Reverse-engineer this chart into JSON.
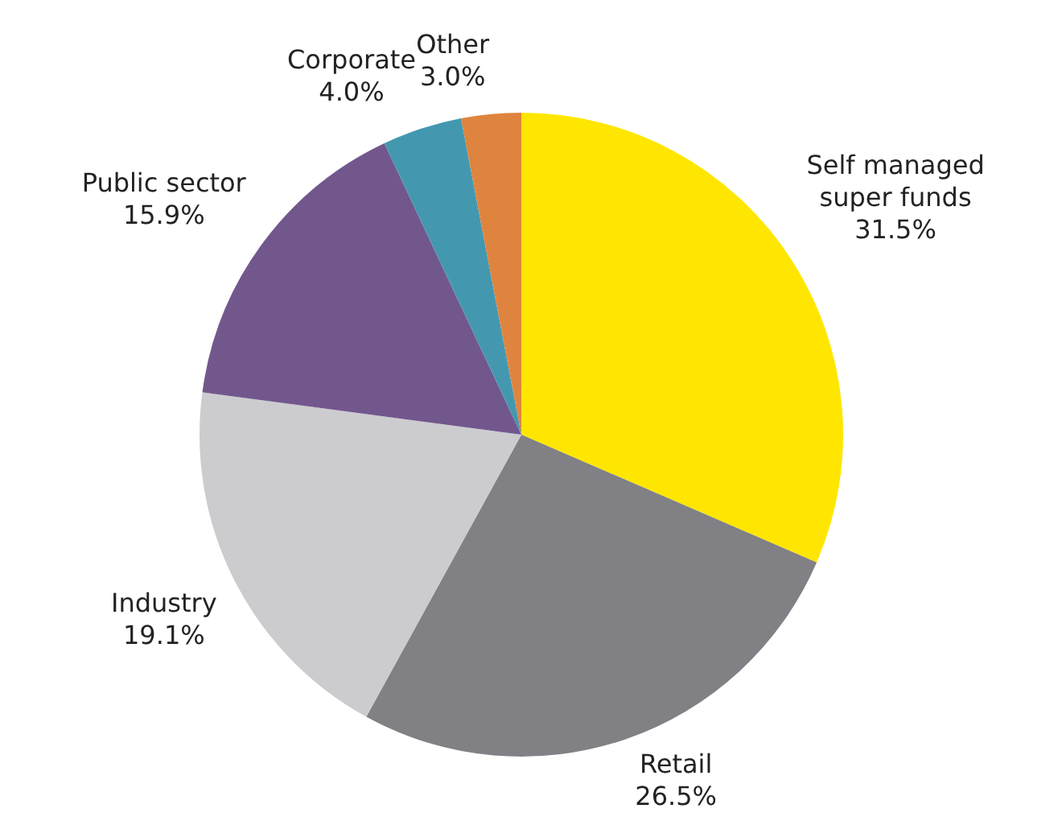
{
  "chart_data": {
    "type": "pie",
    "categories": [
      "Self managed super funds",
      "Retail",
      "Industry",
      "Public sector",
      "Corporate",
      "Other"
    ],
    "values": [
      31.5,
      26.5,
      19.1,
      15.9,
      4.0,
      3.0
    ],
    "value_labels": [
      "31.5%",
      "26.5%",
      "19.1%",
      "15.9%",
      "4.0%",
      "3.0%"
    ],
    "colors": [
      "#ffe600",
      "#808085",
      "#cccccf",
      "#72578c",
      "#4398b0",
      "#df843e"
    ],
    "legend": false
  }
}
